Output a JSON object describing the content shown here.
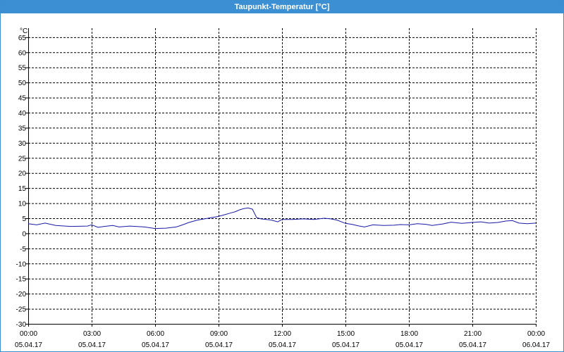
{
  "window": {
    "title": "Taupunkt-Temperatur [°C]"
  },
  "colors": {
    "titlebar": "#3c8fd2",
    "line": "#1a1aa6",
    "grid": "#000000"
  },
  "chart_data": {
    "type": "line",
    "title": "Taupunkt-Temperatur [°C]",
    "unit_label": "°C",
    "xlabel": "",
    "ylabel": "",
    "grid": true,
    "grid_style": "dashed",
    "ylim": [
      -30,
      68
    ],
    "y_ticks": [
      65,
      60,
      55,
      50,
      45,
      40,
      35,
      30,
      25,
      20,
      15,
      10,
      5,
      0,
      -5,
      -10,
      -15,
      -20,
      -25,
      -30
    ],
    "xlim": [
      0,
      24
    ],
    "x_ticks": [
      {
        "time": "00:00",
        "date": "05.04.17"
      },
      {
        "time": "03:00",
        "date": "05.04.17"
      },
      {
        "time": "06:00",
        "date": "05.04.17"
      },
      {
        "time": "09:00",
        "date": "05.04.17"
      },
      {
        "time": "12:00",
        "date": "05.04.17"
      },
      {
        "time": "15:00",
        "date": "05.04.17"
      },
      {
        "time": "18:00",
        "date": "05.04.17"
      },
      {
        "time": "21:00",
        "date": "05.04.17"
      },
      {
        "time": "00:00",
        "date": "06.04.17"
      }
    ],
    "series": [
      {
        "hours": [
          0,
          0.4,
          0.8,
          1.3,
          2,
          2.8,
          3,
          3.3,
          3.6,
          4,
          4.3,
          4.8,
          5.5,
          6,
          6.5,
          7,
          7.3,
          7.6,
          8,
          8.5,
          9,
          9.3,
          9.6,
          9.8,
          10,
          10.2,
          10.4,
          10.6,
          10.8,
          11,
          11.5,
          11.8,
          12,
          12.5,
          13,
          13.5,
          14,
          14.3,
          14.6,
          15,
          15.3,
          15.6,
          15.9,
          16.3,
          16.8,
          17.3,
          17.6,
          18,
          18.4,
          18.8,
          19.1,
          19.6,
          20,
          20.5,
          21,
          21.4,
          21.8,
          22.2,
          22.6,
          22.9,
          23.2,
          23.6,
          24
        ],
        "values": [
          3.2,
          2.8,
          3.4,
          2.6,
          2.3,
          2.4,
          2.8,
          2.0,
          2.3,
          2.6,
          2.1,
          2.4,
          2.1,
          1.6,
          1.7,
          2.1,
          2.8,
          3.6,
          4.4,
          5.0,
          5.6,
          6.2,
          6.8,
          7.2,
          7.8,
          8.2,
          8.4,
          8.0,
          5.2,
          4.8,
          4.4,
          3.8,
          4.6,
          4.6,
          4.8,
          4.6,
          5.0,
          4.8,
          4.4,
          3.3,
          3.0,
          2.5,
          2.1,
          2.8,
          2.6,
          2.7,
          2.9,
          2.8,
          3.2,
          3.0,
          2.6,
          3.1,
          3.7,
          3.3,
          3.6,
          3.8,
          3.4,
          3.6,
          4.1,
          4.2,
          3.4,
          3.2,
          3.4
        ]
      }
    ]
  }
}
